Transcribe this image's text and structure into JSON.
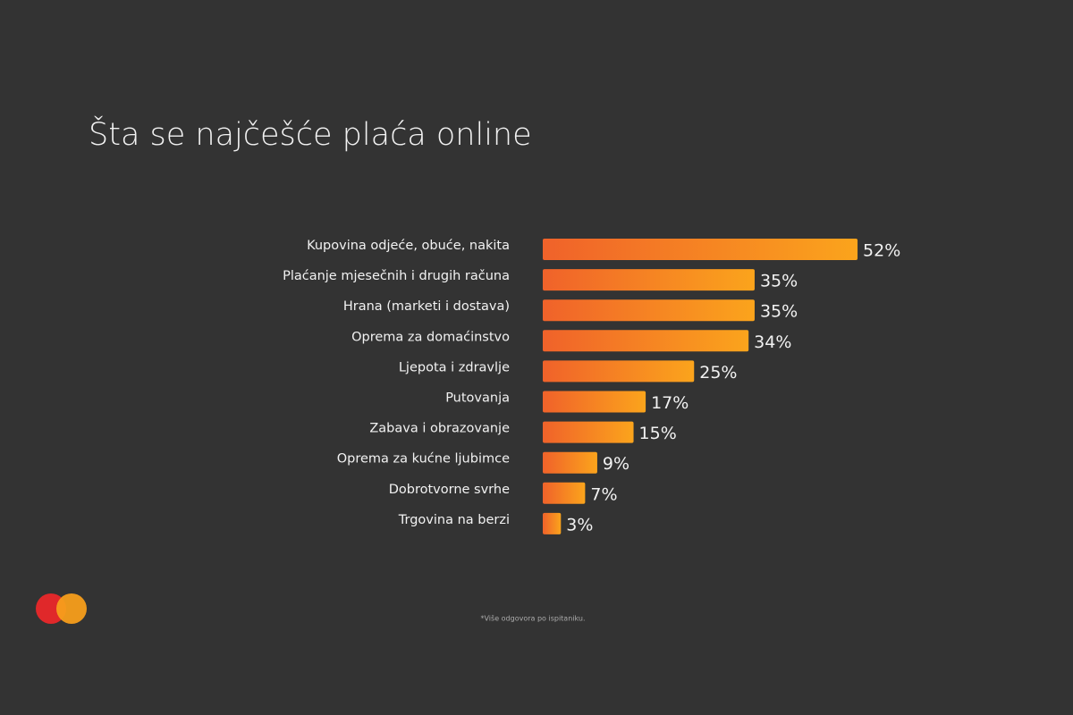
{
  "chart_data": {
    "type": "bar",
    "orientation": "horizontal",
    "title": "Šta se najčešće plaća online",
    "categories": [
      "Kupovina odjeće, obuće, nakita",
      "Plaćanje mjesečnih i drugih računa",
      "Hrana (marketi i dostava)",
      "Oprema za domaćinstvo",
      "Ljepota i zdravlje",
      "Putovanja",
      "Zabava i obrazovanje",
      "Oprema za kućne ljubimce",
      "Dobrotvorne svrhe",
      "Trgovina na berzi"
    ],
    "values": [
      52,
      35,
      35,
      34,
      25,
      17,
      15,
      9,
      7,
      3
    ],
    "value_labels": [
      "52%",
      "35%",
      "35%",
      "34%",
      "25%",
      "17%",
      "15%",
      "9%",
      "7%",
      "3%"
    ],
    "colors": [
      "#f0622a",
      "#fba41c"
    ],
    "footnote": "*Više odgovora po ispitaniku."
  }
}
